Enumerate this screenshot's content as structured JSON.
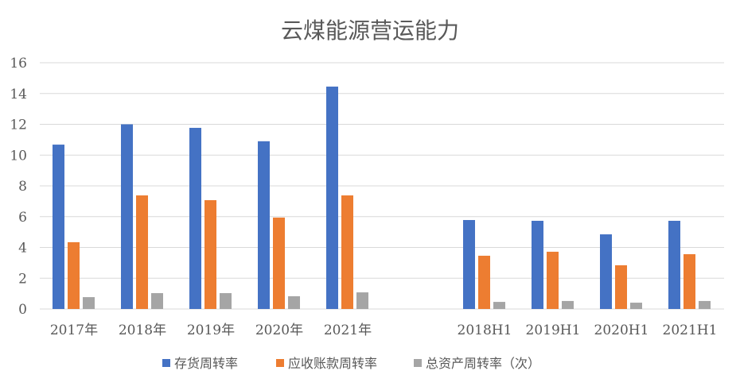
{
  "chart_data": {
    "type": "bar",
    "title": "云煤能源营运能力",
    "xlabel": "",
    "ylabel": "",
    "ylim": [
      0,
      16
    ],
    "yticks": [
      0,
      2,
      4,
      6,
      8,
      10,
      12,
      14,
      16
    ],
    "grid": true,
    "legend_position": "bottom",
    "categories": [
      "2017年",
      "2018年",
      "2019年",
      "2020年",
      "2021年",
      "",
      "2018H1",
      "2019H1",
      "2020H1",
      "2021H1"
    ],
    "series": [
      {
        "name": "存货周转率",
        "color": "#4472C4",
        "values": [
          10.68,
          12.0,
          11.77,
          10.9,
          14.45,
          null,
          5.78,
          5.73,
          4.85,
          5.73
        ]
      },
      {
        "name": "应收账款周转率",
        "color": "#ED7D31",
        "values": [
          4.34,
          7.38,
          7.07,
          5.94,
          7.38,
          null,
          3.46,
          3.72,
          2.84,
          3.56
        ]
      },
      {
        "name": "总资产周转率（次）",
        "color": "#A5A5A5",
        "values": [
          0.77,
          1.03,
          1.03,
          0.83,
          1.08,
          null,
          0.46,
          0.52,
          0.41,
          0.52
        ]
      }
    ]
  }
}
